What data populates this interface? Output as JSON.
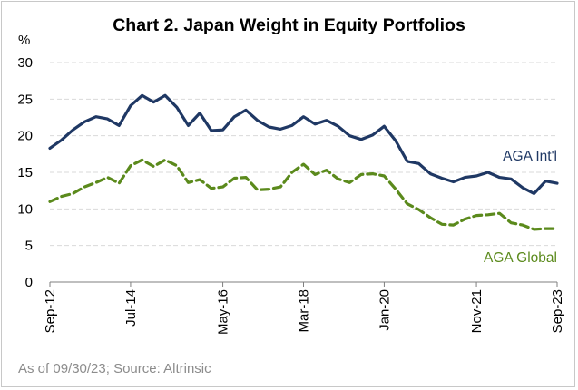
{
  "title": "Chart 2. Japan Weight in Equity Portfolios",
  "unit_label": "%",
  "source_note": "As of 09/30/23; Source: Altrinsic",
  "colors": {
    "intl": "#1f3864",
    "global": "#5b8a1c",
    "grid": "#d9d9d9",
    "axis": "#7f7f7f"
  },
  "chart_data": {
    "type": "line",
    "title": "Chart 2. Japan Weight in Equity Portfolios",
    "ylabel": "%",
    "ylim": [
      0,
      30
    ],
    "yticks": [
      0,
      5,
      10,
      15,
      20,
      25,
      30
    ],
    "grid": true,
    "x_tick_labels": [
      "Sep-12",
      "Jul-14",
      "May-16",
      "Mar-18",
      "Jan-20",
      "Nov-21",
      "Sep-23"
    ],
    "x_frequency": "quarterly",
    "x_start": "Sep-12",
    "x_end": "Sep-23",
    "series": [
      {
        "name": "AGA Int'l",
        "style": "solid",
        "values": [
          18.3,
          19.4,
          20.8,
          21.9,
          22.6,
          22.3,
          21.4,
          24.1,
          25.5,
          24.6,
          25.5,
          23.9,
          21.4,
          23.1,
          20.7,
          20.8,
          22.6,
          23.5,
          22.1,
          21.2,
          20.9,
          21.4,
          22.6,
          21.6,
          22.1,
          21.3,
          20.0,
          19.5,
          20.1,
          21.3,
          19.3,
          16.5,
          16.2,
          14.8,
          14.2,
          13.7,
          14.3,
          14.5,
          15.0,
          14.3,
          14.1,
          12.9,
          12.1,
          13.8,
          13.5
        ]
      },
      {
        "name": "AGA Global",
        "style": "dashed",
        "values": [
          11.0,
          11.7,
          12.1,
          13.0,
          13.6,
          14.3,
          13.5,
          15.9,
          16.7,
          15.8,
          16.7,
          15.9,
          13.6,
          14.0,
          12.8,
          13.0,
          14.2,
          14.3,
          12.6,
          12.7,
          13.0,
          15.0,
          16.1,
          14.7,
          15.3,
          14.1,
          13.6,
          14.7,
          14.8,
          14.5,
          12.7,
          10.7,
          9.9,
          8.8,
          7.9,
          7.8,
          8.6,
          9.1,
          9.2,
          9.4,
          8.1,
          7.8,
          7.2,
          7.3,
          7.3
        ]
      }
    ]
  }
}
